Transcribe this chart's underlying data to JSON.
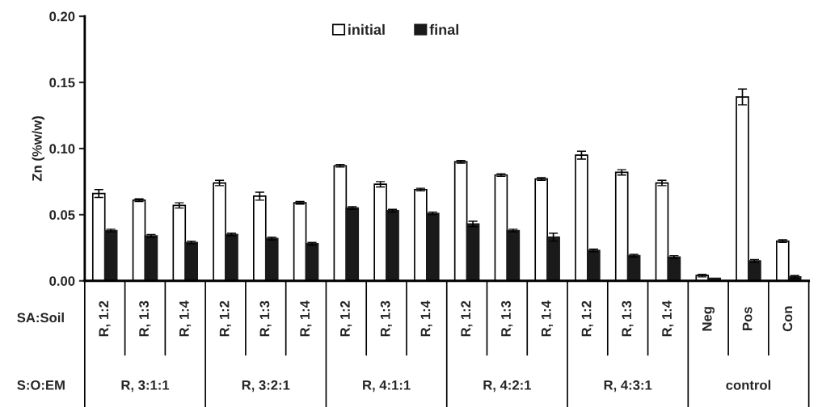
{
  "chart_data": {
    "type": "bar",
    "ylabel": "Zn (%w/w)",
    "categories": [
      "R, 1:2",
      "R, 1:3",
      "R, 1:4",
      "R, 1:2",
      "R, 1:3",
      "R, 1:4",
      "R, 1:2",
      "R, 1:3",
      "R, 1:4",
      "R, 1:2",
      "R, 1:3",
      "R, 1:4",
      "R, 1:2",
      "R, 1:3",
      "R, 1:4",
      "Neg",
      "Pos",
      "Con"
    ],
    "series": [
      {
        "name": "initial",
        "color": "#ffffff",
        "values": [
          0.066,
          0.061,
          0.057,
          0.074,
          0.064,
          0.059,
          0.087,
          0.073,
          0.069,
          0.09,
          0.08,
          0.077,
          0.095,
          0.082,
          0.074,
          0.004,
          0.139,
          0.03
        ],
        "errors": [
          0.003,
          0.001,
          0.002,
          0.002,
          0.003,
          0.001,
          0.001,
          0.002,
          0.001,
          0.001,
          0.001,
          0.001,
          0.003,
          0.002,
          0.002,
          0.001,
          0.006,
          0.001
        ]
      },
      {
        "name": "final",
        "color": "#1a1a1a",
        "values": [
          0.038,
          0.034,
          0.029,
          0.035,
          0.032,
          0.028,
          0.055,
          0.053,
          0.051,
          0.043,
          0.038,
          0.033,
          0.023,
          0.019,
          0.018,
          0.002,
          0.015,
          0.003
        ],
        "errors": [
          0.001,
          0.001,
          0.001,
          0.001,
          0.001,
          0.001,
          0.001,
          0.001,
          0.001,
          0.002,
          0.001,
          0.003,
          0.001,
          0.001,
          0.001,
          null,
          0.001,
          0.001
        ]
      }
    ],
    "ylim": [
      0,
      0.2
    ],
    "yticks": [
      {
        "value": 0,
        "label": "0.00"
      },
      {
        "value": 0.05,
        "label": "0.05"
      },
      {
        "value": 0.1,
        "label": "0.10"
      },
      {
        "value": 0.15,
        "label": "0.15"
      },
      {
        "value": 0.2,
        "label": "0.20"
      }
    ],
    "annotations": [
      "SA:Soil",
      "S:O:EM",
      "R, 3:1:1",
      "R, 3:2:1",
      "R, 4:1:1",
      "R, 4:2:1",
      "R, 4:3:1",
      "control"
    ],
    "grid": false,
    "legend": "top"
  }
}
